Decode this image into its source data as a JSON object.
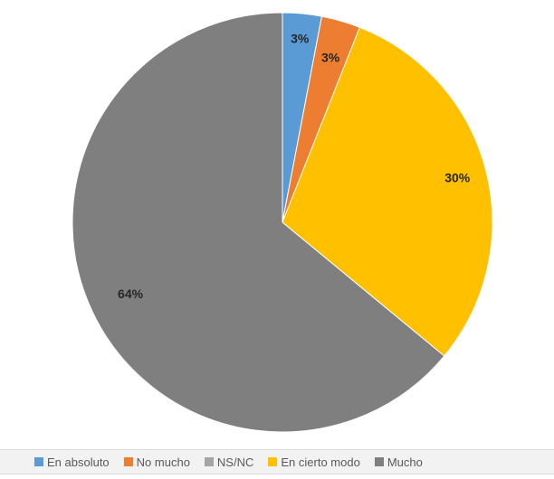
{
  "chart_data": {
    "type": "pie",
    "categories": [
      "En absoluto",
      "No mucho",
      "NS/NC",
      "En cierto modo",
      "Mucho"
    ],
    "values": [
      3,
      3,
      0,
      30,
      64
    ],
    "labels": [
      "3%",
      "3%",
      "",
      "30%",
      "64%"
    ],
    "colors": [
      "#5b9bd5",
      "#ed7d31",
      "#a5a5a5",
      "#ffc000",
      "#7f7f7f"
    ],
    "legend_position": "bottom"
  }
}
